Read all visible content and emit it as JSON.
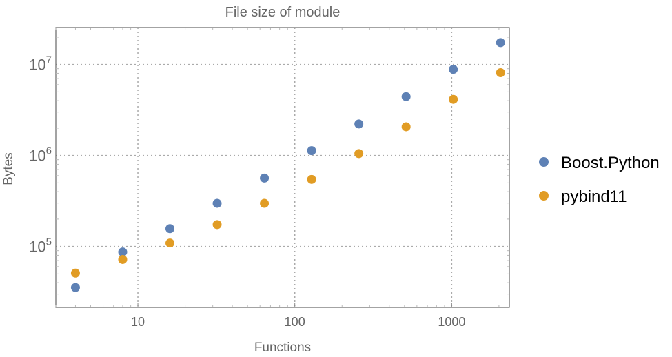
{
  "chart_data": {
    "type": "scatter",
    "title": "File size of module",
    "xlabel": "Functions",
    "ylabel": "Bytes",
    "xscale": "log",
    "yscale": "log",
    "xlim": [
      3.0,
      2330
    ],
    "ylim": [
      21400,
      25500000
    ],
    "grid": true,
    "legend_position": "right",
    "x_ticks": [
      {
        "value": 10,
        "label": "10"
      },
      {
        "value": 100,
        "label": "100"
      },
      {
        "value": 1000,
        "label": "1000"
      }
    ],
    "y_ticks": [
      {
        "value": 100000,
        "base": "10",
        "exp": "5"
      },
      {
        "value": 1000000,
        "base": "10",
        "exp": "6"
      },
      {
        "value": 10000000,
        "base": "10",
        "exp": "7"
      }
    ],
    "x": [
      4,
      8,
      16,
      32,
      64,
      128,
      256,
      512,
      1024,
      2048
    ],
    "series": [
      {
        "name": "Boost.Python",
        "color": "#5e81b5",
        "values": [
          35400,
          87000,
          157000,
          298000,
          565000,
          1130000,
          2220000,
          4440000,
          8860000,
          17400000
        ]
      },
      {
        "name": "pybind11",
        "color": "#e19c24",
        "values": [
          51000,
          72000,
          109000,
          174000,
          298000,
          546000,
          1050000,
          2070000,
          4140000,
          8130000
        ]
      }
    ]
  }
}
